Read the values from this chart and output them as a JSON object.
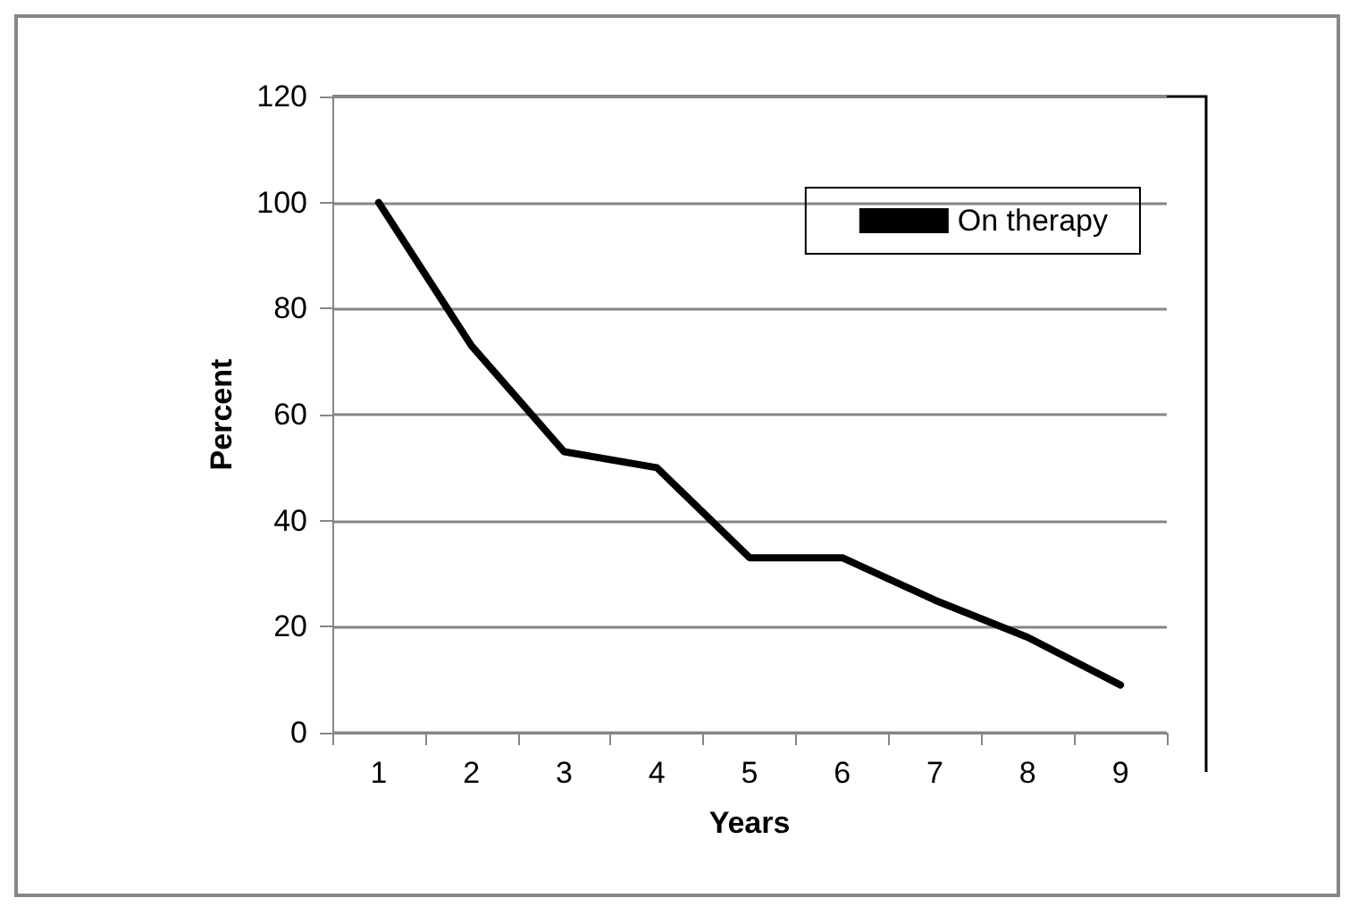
{
  "chart_data": {
    "type": "line",
    "xlabel": "Years",
    "ylabel": "Percent",
    "categories": [
      "1",
      "2",
      "3",
      "4",
      "5",
      "6",
      "7",
      "8",
      "9"
    ],
    "series": [
      {
        "name": "On therapy",
        "color": "#000000",
        "values": [
          100,
          73,
          53,
          50,
          33,
          33,
          25,
          18,
          9
        ]
      }
    ],
    "ylim": [
      0,
      120
    ],
    "yticks": [
      0,
      20,
      40,
      60,
      80,
      100,
      120
    ],
    "grid": "y",
    "legend": "top right",
    "marker": "none",
    "line_style": "solid"
  }
}
